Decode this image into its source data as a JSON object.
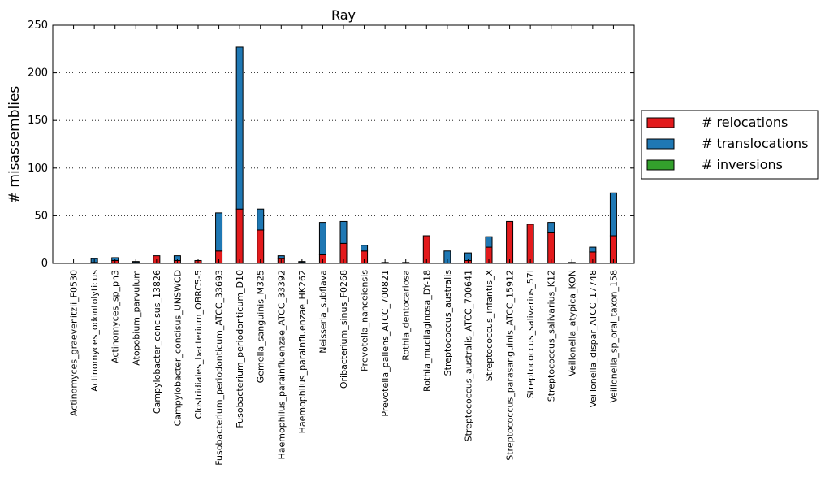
{
  "chart_data": {
    "type": "bar",
    "stacked": true,
    "title": "Ray",
    "xlabel": "",
    "ylabel": "# misassemblies",
    "ylim": [
      0,
      250
    ],
    "yticks": [
      0,
      50,
      100,
      150,
      200,
      250
    ],
    "grid": "y-dotted",
    "legend_position": "right",
    "categories": [
      "Actinomyces_graevenitzii_F0530",
      "Actinomyces_odontolyticus",
      "Actinomyces_sp_ph3",
      "Atopobium_parvulum",
      "Campylobacter_concisus_13826",
      "Campylobacter_concisus_UNSWCD",
      "Clostridiales_bacterium_OBRC5-5",
      "Fusobacterium_periodonticum_ATCC_33693",
      "Fusobacterium_periodonticum_D10",
      "Gemella_sanguinis_M325",
      "Haemophilus_parainfluenzae_ATCC_33392",
      "Haemophilus_parainfluenzae_HK262",
      "Neisseria_subflava",
      "Oribacterium_sinus_F0268",
      "Prevotella_nanceiensis",
      "Prevotella_pallens_ATCC_700821",
      "Rothia_dentocariosa",
      "Rothia_mucilaginosa_DY-18",
      "Streptococcus_australis",
      "Streptococcus_australis_ATCC_700641",
      "Streptococcus_infantis_X",
      "Streptococcus_parasanguinis_ATCC_15912",
      "Streptococcus_salivarius_57I",
      "Streptococcus_salivarius_K12",
      "Veillonella_atypica_KON",
      "Veillonella_dispar_ATCC_17748",
      "Veillonella_sp_oral_taxon_158"
    ],
    "series": [
      {
        "name": "# relocations",
        "color": "#e31a1c",
        "values": [
          0,
          1,
          3,
          1,
          8,
          3,
          3,
          13,
          57,
          35,
          5,
          1,
          9,
          21,
          13,
          0,
          0,
          29,
          0,
          3,
          17,
          44,
          41,
          32,
          0,
          12,
          29
        ]
      },
      {
        "name": "# translocations",
        "color": "#1f78b4",
        "values": [
          0,
          4,
          3,
          1,
          0,
          5,
          0,
          40,
          170,
          22,
          3,
          1,
          34,
          23,
          6,
          1,
          1,
          0,
          13,
          8,
          11,
          0,
          0,
          11,
          1,
          5,
          45
        ]
      },
      {
        "name": "# inversions",
        "color": "#33a02c",
        "values": [
          0,
          0,
          0,
          0,
          0,
          0,
          0,
          0,
          0,
          0,
          0,
          0,
          0,
          0,
          0,
          0,
          0,
          0,
          0,
          0,
          0,
          0,
          0,
          0,
          0,
          0,
          0
        ]
      }
    ]
  }
}
